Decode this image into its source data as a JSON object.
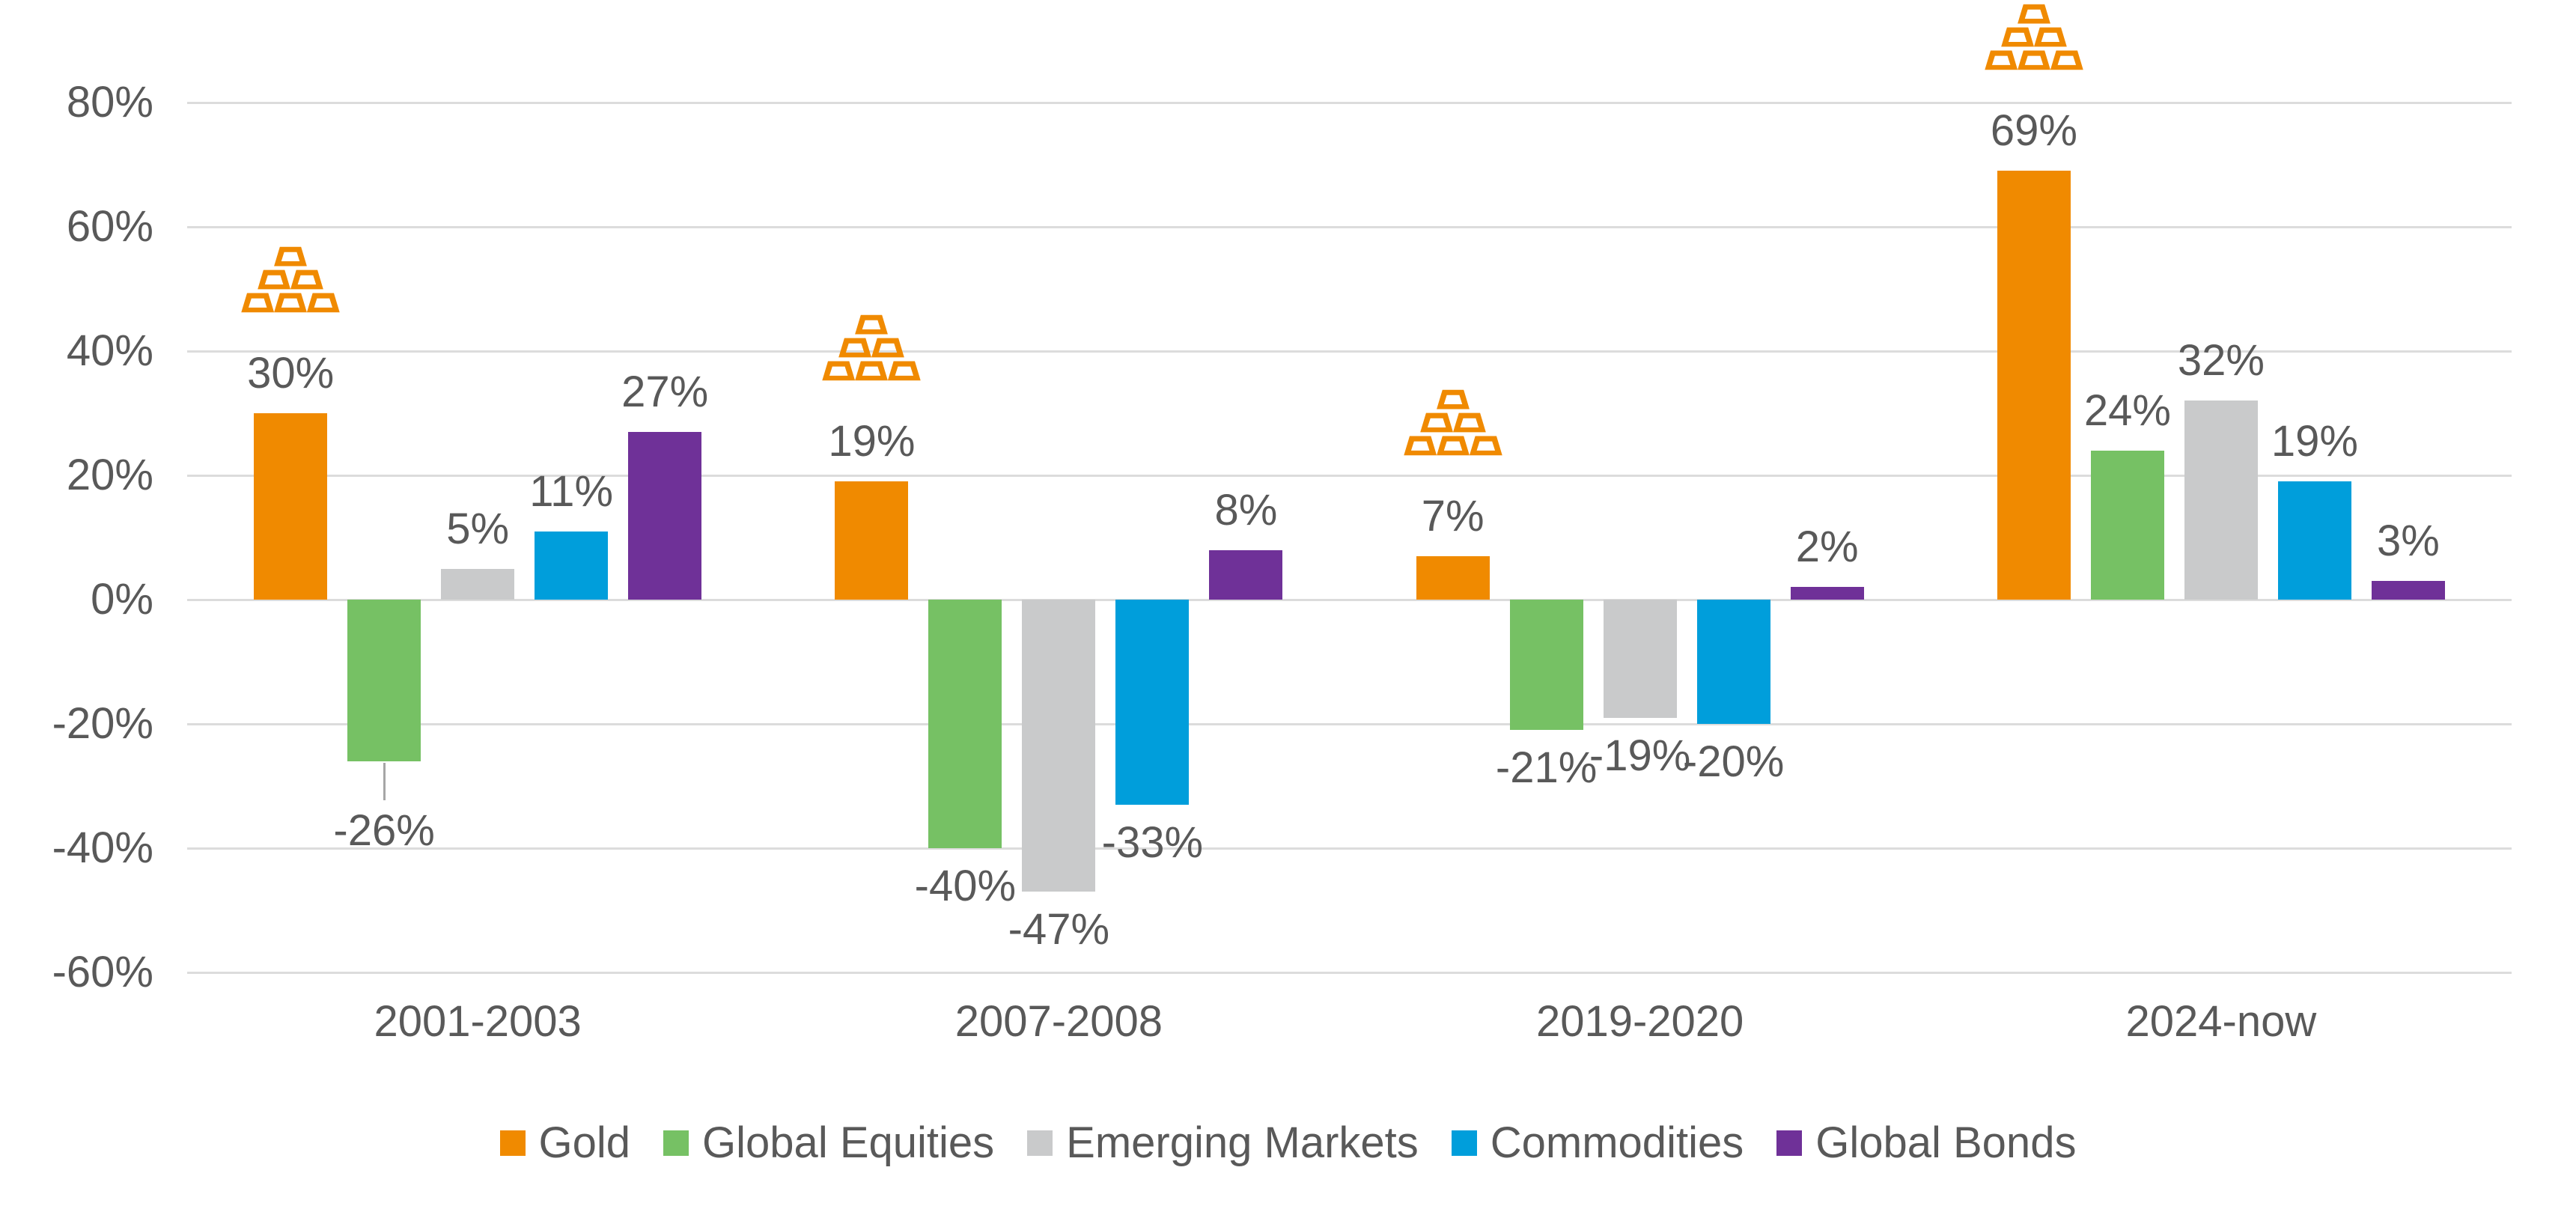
{
  "chart_data": {
    "type": "bar",
    "title": "",
    "categories": [
      "2001-2003",
      "2007-2008",
      "2019-2020",
      "2024-now"
    ],
    "series": [
      {
        "name": "Gold",
        "color": "#F08A00",
        "values": [
          30,
          19,
          7,
          69
        ]
      },
      {
        "name": "Global Equities",
        "color": "#76C164",
        "values": [
          -26,
          -40,
          -21,
          24
        ]
      },
      {
        "name": "Emerging Markets",
        "color": "#C9CACB",
        "values": [
          5,
          -47,
          -19,
          32
        ]
      },
      {
        "name": "Commodities",
        "color": "#009EDB",
        "values": [
          11,
          -33,
          -20,
          19
        ]
      },
      {
        "name": "Global Bonds",
        "color": "#6F3198",
        "values": [
          27,
          8,
          2,
          3
        ]
      }
    ],
    "value_suffix": "%",
    "ylim": [
      -60,
      80
    ],
    "ytick_step": 20,
    "yticks": [
      {
        "value": 80,
        "label": "80%"
      },
      {
        "value": 60,
        "label": "60%"
      },
      {
        "value": 40,
        "label": "40%"
      },
      {
        "value": 20,
        "label": "20%"
      },
      {
        "value": 0,
        "label": "0%"
      },
      {
        "value": -20,
        "label": "-20%"
      },
      {
        "value": -40,
        "label": "-40%"
      },
      {
        "value": -60,
        "label": "-60%"
      }
    ],
    "grid": true,
    "data_labels": true,
    "legend_position": "bottom",
    "icon_above_series": "Gold",
    "icon_name": "gold-ingots-icon",
    "label_callouts": [
      {
        "category": "2001-2003",
        "series": "Global Equities"
      }
    ]
  },
  "style": {
    "background": "#FFFFFF",
    "grid_color": "#DCDCDC",
    "text_color": "#595959",
    "leader_color": "#A6A6A6",
    "icon_color": "#F08A00"
  }
}
